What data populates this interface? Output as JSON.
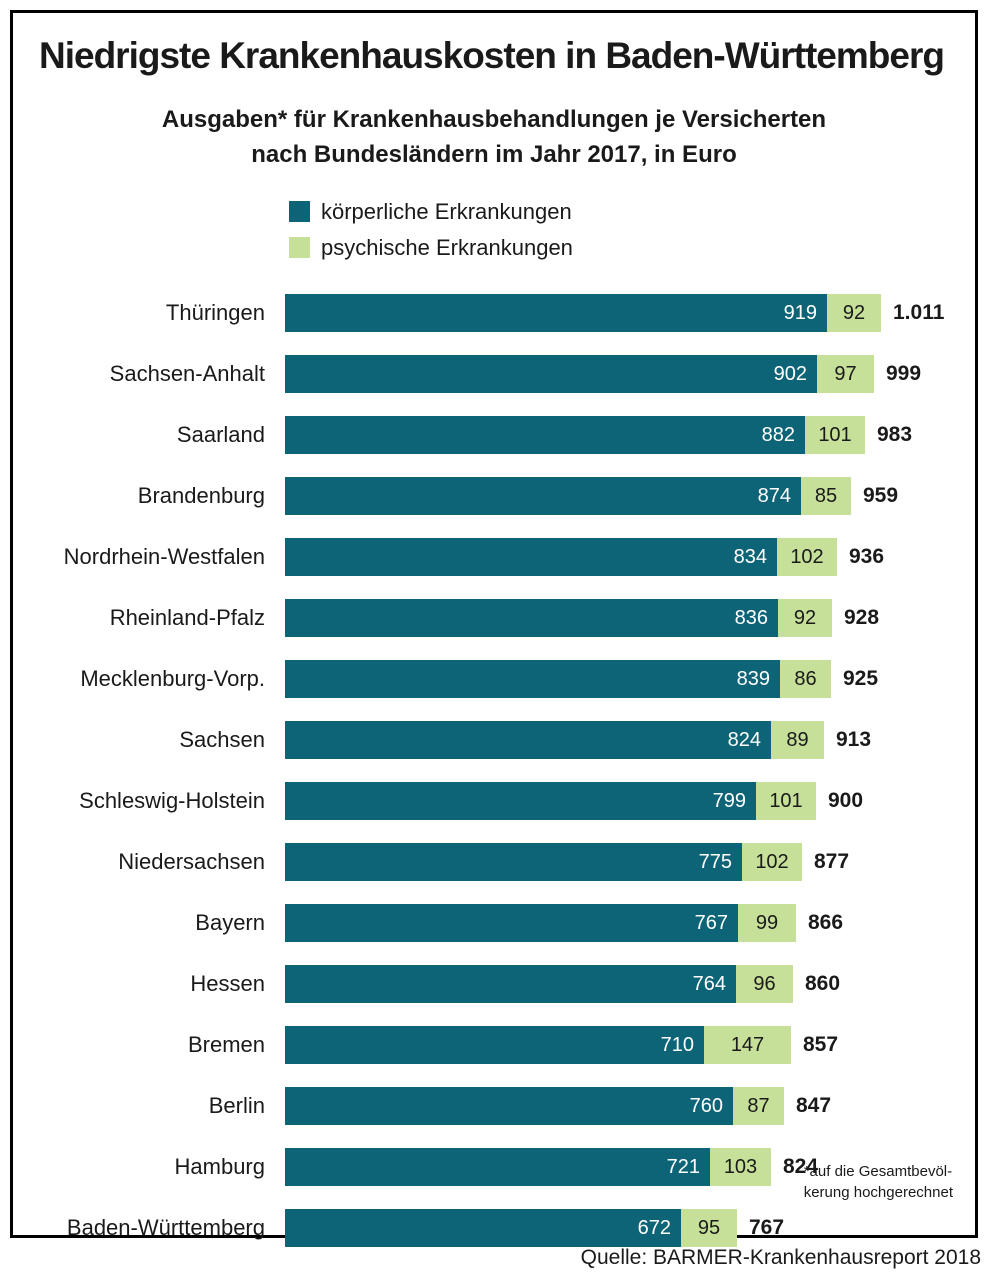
{
  "title": "Niedrigste Krankenhauskosten in Baden-Württemberg",
  "subtitle_line1": "Ausgaben* für Krankenhausbehandlungen je Versicherten",
  "subtitle_line2": "nach Bundesländern im Jahr 2017, in Euro",
  "legend": [
    {
      "label": "körperliche Erkrankungen",
      "color": "#0d6477"
    },
    {
      "label": "psychische Erkrankungen",
      "color": "#c7e099"
    }
  ],
  "footnote_line1": "*auf die Gesamtbevöl-",
  "footnote_line2": "kerung hochgerechnet",
  "source": "Quelle: BARMER-Krankenhausreport 2018",
  "chart_data": {
    "type": "bar",
    "orientation": "horizontal",
    "stacked": true,
    "title": "Niedrigste Krankenhauskosten in Baden-Württemberg",
    "subtitle": "Ausgaben* für Krankenhausbehandlungen je Versicherten nach Bundesländern im Jahr 2017, in Euro",
    "unit": "Euro",
    "xlim": [
      0,
      1011
    ],
    "grid": false,
    "legend_position": "top-left",
    "categories": [
      "Thüringen",
      "Sachsen-Anhalt",
      "Saarland",
      "Brandenburg",
      "Nordrhein-Westfalen",
      "Rheinland-Pfalz",
      "Mecklenburg-Vorp.",
      "Sachsen",
      "Schleswig-Holstein",
      "Niedersachsen",
      "Bayern",
      "Hessen",
      "Bremen",
      "Berlin",
      "Hamburg",
      "Baden-Württemberg"
    ],
    "series": [
      {
        "name": "körperliche Erkrankungen",
        "color": "#0d6477",
        "values": [
          919,
          902,
          882,
          874,
          834,
          836,
          839,
          824,
          799,
          775,
          767,
          764,
          710,
          760,
          721,
          672
        ]
      },
      {
        "name": "psychische Erkrankungen",
        "color": "#c7e099",
        "values": [
          92,
          97,
          101,
          85,
          102,
          92,
          86,
          89,
          101,
          102,
          99,
          96,
          147,
          87,
          103,
          95
        ]
      }
    ],
    "totals": [
      1011,
      999,
      983,
      959,
      936,
      928,
      925,
      913,
      900,
      877,
      866,
      860,
      857,
      847,
      824,
      767
    ],
    "total_labels": [
      "1.011",
      "999",
      "983",
      "959",
      "936",
      "928",
      "925",
      "913",
      "900",
      "877",
      "866",
      "860",
      "857",
      "847",
      "824",
      "767"
    ]
  }
}
